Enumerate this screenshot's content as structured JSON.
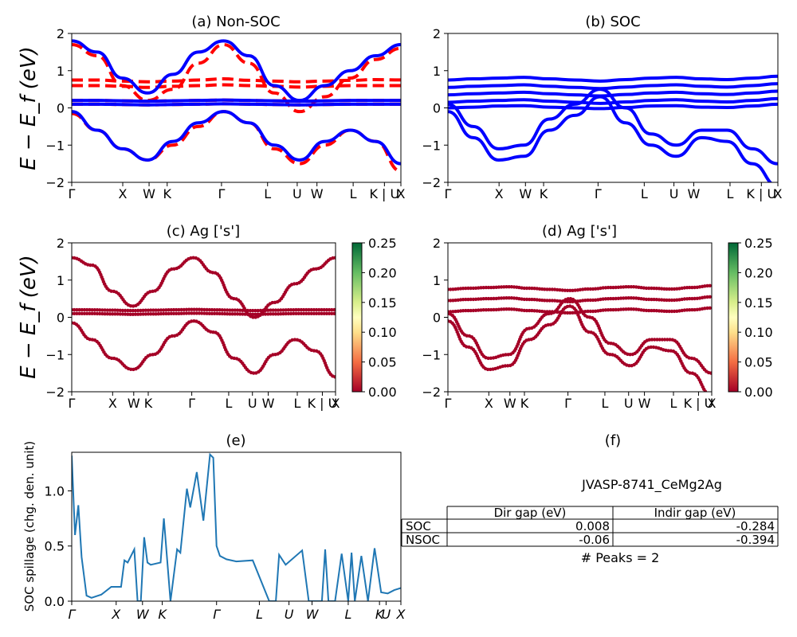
{
  "colors": {
    "nsoc": "#ff0000",
    "soc": "#0000ff",
    "spillage": "#1f77b4"
  },
  "bandstructure": {
    "ylabel": "E − E_f (eV)",
    "ylim": [
      -2,
      2
    ],
    "yticks": [
      "−2",
      "−1",
      "0",
      "1",
      "2"
    ],
    "kpath": [
      "Γ",
      "X",
      "W",
      "K",
      "Γ",
      "L",
      "U",
      "W",
      "L",
      "K | U",
      "X"
    ]
  },
  "chart_data": [
    {
      "type": "line",
      "title": "(a) Non-SOC",
      "ylabel": "E − E_f (eV)",
      "ylim": [
        -2,
        2
      ],
      "series": [
        {
          "style": "red dashed",
          "bands": [
            [
              -0.15,
              -0.6,
              -1.1,
              -1.4,
              -1.0,
              -0.5,
              -0.1,
              -0.4,
              -1.1,
              -1.5,
              -1.0,
              -0.6,
              -0.9,
              -1.7
            ],
            [
              1.7,
              1.4,
              0.6,
              0.2,
              0.5,
              1.2,
              1.7,
              1.2,
              0.4,
              -0.1,
              0.3,
              0.8,
              1.3,
              1.6
            ],
            [
              0.75,
              0.75,
              0.72,
              0.7,
              0.72,
              0.75,
              0.78,
              0.74,
              0.72,
              0.7,
              0.72,
              0.74,
              0.76,
              0.75
            ],
            [
              0.6,
              0.6,
              0.58,
              0.55,
              0.58,
              0.6,
              0.62,
              0.6,
              0.58,
              0.56,
              0.58,
              0.6,
              0.6,
              0.6
            ],
            [
              0.2,
              0.2,
              0.19,
              0.18,
              0.19,
              0.2,
              0.21,
              0.2,
              0.19,
              0.18,
              0.19,
              0.2,
              0.2,
              0.2
            ],
            [
              0.1,
              0.1,
              0.09,
              0.08,
              0.09,
              0.1,
              0.11,
              0.1,
              0.09,
              0.08,
              0.09,
              0.1,
              0.1,
              0.1
            ]
          ]
        },
        {
          "style": "blue solid",
          "bands": [
            [
              -0.1,
              -0.6,
              -1.1,
              -1.4,
              -0.9,
              -0.4,
              -0.1,
              -0.4,
              -1.0,
              -1.4,
              -0.9,
              -0.6,
              -0.9,
              -1.5
            ],
            [
              1.8,
              1.5,
              0.8,
              0.4,
              0.9,
              1.5,
              1.8,
              1.4,
              0.6,
              0.2,
              0.6,
              1.0,
              1.4,
              1.7
            ],
            [
              0.2,
              0.2,
              0.19,
              0.18,
              0.19,
              0.2,
              0.21,
              0.2,
              0.19,
              0.18,
              0.19,
              0.2,
              0.2,
              0.2
            ],
            [
              0.1,
              0.1,
              0.09,
              0.08,
              0.09,
              0.1,
              0.11,
              0.1,
              0.09,
              0.08,
              0.09,
              0.1,
              0.1,
              0.1
            ]
          ]
        }
      ]
    },
    {
      "type": "line",
      "title": "(b) SOC",
      "ylim": [
        -2,
        2
      ],
      "series": [
        {
          "style": "blue solid",
          "bands": [
            [
              0.75,
              0.78,
              0.8,
              0.82,
              0.78,
              0.75,
              0.72,
              0.76,
              0.8,
              0.82,
              0.78,
              0.76,
              0.8,
              0.85
            ],
            [
              0.55,
              0.58,
              0.6,
              0.62,
              0.58,
              0.55,
              0.52,
              0.56,
              0.6,
              0.62,
              0.58,
              0.56,
              0.6,
              0.65
            ],
            [
              0.35,
              0.38,
              0.4,
              0.42,
              0.38,
              0.35,
              0.32,
              0.36,
              0.4,
              0.42,
              0.38,
              0.36,
              0.4,
              0.45
            ],
            [
              0.15,
              0.18,
              0.2,
              0.22,
              0.18,
              0.15,
              0.12,
              0.16,
              0.2,
              0.22,
              0.18,
              0.16,
              0.2,
              0.25
            ],
            [
              0.0,
              0.02,
              0.05,
              0.06,
              0.02,
              0.0,
              -0.02,
              0.01,
              0.05,
              0.06,
              0.02,
              0.01,
              0.05,
              0.1
            ],
            [
              -0.1,
              -0.8,
              -1.4,
              -1.3,
              -0.6,
              -0.2,
              0.3,
              -0.4,
              -1.0,
              -1.3,
              -0.8,
              -0.9,
              -1.5,
              -2.1
            ],
            [
              0.1,
              -0.5,
              -1.1,
              -1.0,
              -0.3,
              0.1,
              0.5,
              0.0,
              -0.7,
              -1.0,
              -0.6,
              -0.6,
              -1.1,
              -1.5
            ]
          ]
        }
      ]
    },
    {
      "type": "scatter",
      "title": "(c)  Ag ['s']",
      "ylabel": "E − E_f (eV)",
      "ylim": [
        -2,
        2
      ],
      "colorbar": {
        "min": 0.0,
        "max": 0.25,
        "ticks": [
          "0.00",
          "0.05",
          "0.10",
          "0.15",
          "0.20",
          "0.25"
        ]
      },
      "series": [
        {
          "style": "dots",
          "bands": [
            [
              -0.15,
              -0.6,
              -1.1,
              -1.4,
              -1.0,
              -0.5,
              -0.1,
              -0.4,
              -1.1,
              -1.5,
              -1.0,
              -0.6,
              -0.9,
              -1.6
            ],
            [
              1.6,
              1.4,
              0.7,
              0.3,
              0.7,
              1.3,
              1.6,
              1.2,
              0.5,
              0.0,
              0.4,
              0.9,
              1.3,
              1.6
            ],
            [
              0.2,
              0.2,
              0.19,
              0.18,
              0.19,
              0.2,
              0.21,
              0.2,
              0.19,
              0.18,
              0.19,
              0.2,
              0.2,
              0.2
            ],
            [
              0.1,
              0.1,
              0.09,
              0.08,
              0.09,
              0.1,
              0.11,
              0.1,
              0.09,
              0.08,
              0.09,
              0.1,
              0.1,
              0.1
            ]
          ]
        }
      ]
    },
    {
      "type": "scatter",
      "title": "(d) Ag ['s']",
      "ylim": [
        -2,
        2
      ],
      "colorbar": {
        "min": 0.0,
        "max": 0.25,
        "ticks": [
          "0.00",
          "0.05",
          "0.10",
          "0.15",
          "0.20",
          "0.25"
        ]
      },
      "series": [
        {
          "style": "dots",
          "bands": [
            [
              0.75,
              0.78,
              0.8,
              0.82,
              0.78,
              0.75,
              0.72,
              0.76,
              0.8,
              0.82,
              0.78,
              0.76,
              0.8,
              0.85
            ],
            [
              0.45,
              0.48,
              0.5,
              0.52,
              0.48,
              0.45,
              0.42,
              0.46,
              0.5,
              0.52,
              0.48,
              0.46,
              0.5,
              0.55
            ],
            [
              0.15,
              0.18,
              0.2,
              0.22,
              0.18,
              0.15,
              0.12,
              0.16,
              0.2,
              0.22,
              0.18,
              0.16,
              0.2,
              0.25
            ],
            [
              -0.1,
              -0.8,
              -1.4,
              -1.3,
              -0.6,
              -0.2,
              0.3,
              -0.4,
              -1.0,
              -1.3,
              -0.8,
              -0.9,
              -1.5,
              -2.1
            ],
            [
              0.1,
              -0.5,
              -1.1,
              -1.0,
              -0.3,
              0.1,
              0.5,
              0.0,
              -0.7,
              -1.0,
              -0.6,
              -0.6,
              -1.1,
              -1.5
            ]
          ]
        }
      ]
    },
    {
      "type": "line",
      "title": "(e)",
      "ylabel": "SOC spillage (chg. den. unit)",
      "ylim": [
        0.0,
        1.35
      ],
      "yticks": [
        "0.0",
        "0.5",
        "1.0"
      ],
      "xticklabels": [
        "Γ",
        "X",
        "W",
        "K",
        "Γ",
        "L",
        "U",
        "W",
        "L",
        "K",
        "U",
        "X"
      ],
      "x": [
        0,
        0.01,
        0.02,
        0.03,
        0.045,
        0.06,
        0.09,
        0.12,
        0.15,
        0.16,
        0.17,
        0.19,
        0.2,
        0.21,
        0.22,
        0.23,
        0.24,
        0.27,
        0.28,
        0.3,
        0.32,
        0.33,
        0.35,
        0.36,
        0.38,
        0.4,
        0.42,
        0.43,
        0.44,
        0.45,
        0.47,
        0.5,
        0.55,
        0.6,
        0.62,
        0.63,
        0.65,
        0.7,
        0.72,
        0.74,
        0.76,
        0.77,
        0.78,
        0.8,
        0.82,
        0.84,
        0.85,
        0.86,
        0.88,
        0.9,
        0.92,
        0.94,
        0.96,
        0.98,
        1.0
      ],
      "values": [
        1.32,
        0.6,
        0.87,
        0.4,
        0.05,
        0.03,
        0.06,
        0.13,
        0.13,
        0.37,
        0.35,
        0.47,
        0.0,
        0.0,
        0.58,
        0.35,
        0.33,
        0.35,
        0.75,
        0.0,
        0.47,
        0.44,
        1.02,
        0.85,
        1.17,
        0.73,
        1.33,
        1.3,
        0.5,
        0.41,
        0.38,
        0.36,
        0.37,
        0.0,
        0.0,
        0.42,
        0.33,
        0.46,
        0.0,
        0.0,
        0.0,
        0.47,
        0.0,
        0.0,
        0.43,
        0.0,
        0.44,
        0.0,
        0.41,
        0.0,
        0.48,
        0.08,
        0.07,
        0.1,
        0.12
      ]
    },
    {
      "type": "table",
      "title": "(f)",
      "subtitle": "JVASP-8741_CeMg2Ag",
      "columns": [
        "",
        "Dir gap (eV)",
        "Indir gap (eV)"
      ],
      "rows": [
        [
          "SOC",
          "0.008",
          "-0.284"
        ],
        [
          "NSOC",
          "-0.06",
          "-0.394"
        ]
      ],
      "footnote": "# Peaks = 2"
    }
  ]
}
